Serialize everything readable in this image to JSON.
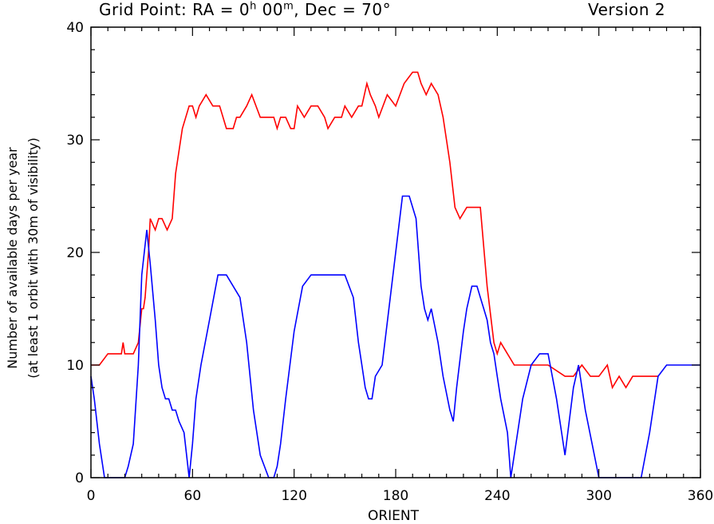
{
  "title": {
    "prefix": "Grid Point: RA = 0",
    "ra_h_sup": "h",
    "ra_min": " 00",
    "ra_m_sup": "m",
    "dec": ", Dec = 70°",
    "version": "Version 2"
  },
  "chart_data": {
    "type": "line",
    "xlabel": "ORIENT",
    "ylabel_line1": "Number of available days per year",
    "ylabel_line2": "(at least 1 orbit with 30m of visibility)",
    "xlim": [
      0,
      360
    ],
    "ylim": [
      0,
      40
    ],
    "xticks": [
      0,
      60,
      120,
      180,
      240,
      300,
      360
    ],
    "yticks": [
      0,
      10,
      20,
      30,
      40
    ],
    "grid": false,
    "series": [
      {
        "color": "#ff0000",
        "x": [
          0,
          5,
          10,
          15,
          18,
          19,
          20,
          25,
          28,
          30,
          31,
          32,
          33,
          34,
          35,
          38,
          40,
          42,
          45,
          48,
          50,
          54,
          58,
          60,
          62,
          64,
          68,
          72,
          76,
          80,
          84,
          86,
          88,
          92,
          95,
          100,
          105,
          108,
          110,
          112,
          115,
          118,
          120,
          122,
          126,
          130,
          134,
          138,
          140,
          144,
          148,
          150,
          154,
          158,
          160,
          163,
          165,
          168,
          170,
          175,
          180,
          185,
          190,
          193,
          195,
          198,
          201,
          205,
          208,
          212,
          215,
          218,
          222,
          225,
          228,
          230,
          234,
          238,
          240,
          242,
          246,
          250,
          260,
          270,
          280,
          285,
          290,
          295,
          300,
          305,
          308,
          312,
          316,
          320,
          325,
          330,
          335
        ],
        "y": [
          10,
          10,
          11,
          11,
          11,
          12,
          11,
          11,
          12,
          15,
          15,
          16,
          18,
          20,
          23,
          22,
          23,
          23,
          22,
          23,
          27,
          31,
          33,
          33,
          32,
          33,
          34,
          33,
          33,
          31,
          31,
          32,
          32,
          33,
          34,
          32,
          32,
          32,
          31,
          32,
          32,
          31,
          31,
          33,
          32,
          33,
          33,
          32,
          31,
          32,
          32,
          33,
          32,
          33,
          33,
          35,
          34,
          33,
          32,
          34,
          33,
          35,
          36,
          36,
          35,
          34,
          35,
          34,
          32,
          28,
          24,
          23,
          24,
          24,
          24,
          24,
          17,
          12,
          11,
          12,
          11,
          10,
          10,
          10,
          9,
          9,
          10,
          9,
          9,
          10,
          8,
          9,
          8,
          9,
          9,
          9,
          9
        ],
        "stroke_width": 1.6
      },
      {
        "color": "#0000ff",
        "x": [
          0,
          2,
          5,
          8,
          10,
          14,
          16,
          18,
          20,
          22,
          25,
          28,
          30,
          33,
          35,
          38,
          40,
          42,
          44,
          46,
          48,
          50,
          52,
          55,
          58,
          60,
          62,
          65,
          70,
          75,
          80,
          84,
          88,
          92,
          96,
          100,
          105,
          108,
          110,
          112,
          115,
          120,
          125,
          130,
          135,
          140,
          145,
          150,
          155,
          158,
          160,
          162,
          164,
          166,
          168,
          172,
          176,
          180,
          184,
          188,
          192,
          195,
          197,
          199,
          201,
          205,
          208,
          212,
          214,
          216,
          220,
          222,
          225,
          228,
          230,
          232,
          234,
          236,
          238,
          240,
          242,
          246,
          248,
          250,
          255,
          260,
          265,
          270,
          275,
          278,
          280,
          285,
          288,
          292,
          296,
          300,
          305,
          310,
          315,
          320,
          325,
          330,
          335,
          340,
          345,
          350,
          355,
          360
        ],
        "y": [
          9,
          7,
          3,
          0,
          0,
          0,
          0,
          0,
          0,
          1,
          3,
          10,
          18,
          22,
          19,
          14,
          10,
          8,
          7,
          7,
          6,
          6,
          5,
          4,
          0,
          3,
          7,
          10,
          14,
          18,
          18,
          17,
          16,
          12,
          6,
          2,
          0,
          0,
          1,
          3,
          7,
          13,
          17,
          18,
          18,
          18,
          18,
          18,
          16,
          12,
          10,
          8,
          7,
          7,
          9,
          10,
          15,
          20,
          25,
          25,
          23,
          17,
          15,
          14,
          15,
          12,
          9,
          6,
          5,
          8,
          13,
          15,
          17,
          17,
          16,
          15,
          14,
          12,
          11,
          9,
          7,
          4,
          0,
          2,
          7,
          10,
          11,
          11,
          7,
          4,
          2,
          8,
          10,
          6,
          3,
          0,
          0,
          0,
          0,
          0,
          0,
          4,
          9,
          10,
          10,
          10,
          10,
          10
        ],
        "stroke_width": 1.6
      }
    ]
  }
}
